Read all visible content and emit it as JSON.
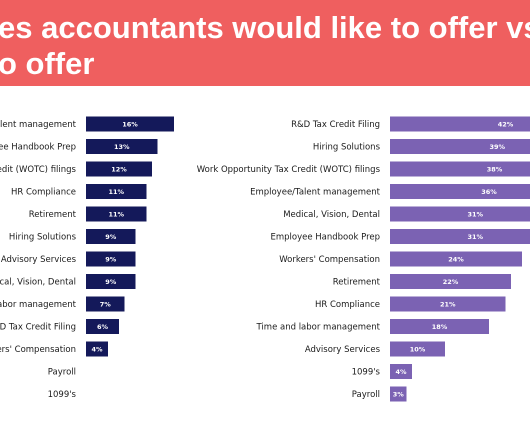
{
  "title": {
    "line1": "es accountants would like to offer vs. do no",
    "line2": "o offer"
  },
  "colors": {
    "banner": "#ef5f5f",
    "left_bars": "#14195a",
    "right_bars": "#7b62b3"
  },
  "chart_data": [
    {
      "type": "bar",
      "orientation": "horizontal",
      "title": "",
      "categories": [
        "alent management",
        "yee Handbook Prep",
        "credit (WOTC) filings",
        "HR Compliance",
        "Retirement",
        "Hiring Solutions",
        "Advisory Services",
        "dical, Vision, Dental",
        "labor management",
        "&D Tax Credit Filing",
        "kers' Compensation",
        "Payroll",
        "1099's"
      ],
      "values": [
        16,
        13,
        12,
        11,
        11,
        9,
        9,
        9,
        7,
        6,
        4,
        0,
        0
      ],
      "value_labels": [
        "16%",
        "13%",
        "12%",
        "11%",
        "11%",
        "9%",
        "9%",
        "9%",
        "7%",
        "6%",
        "4%",
        "",
        ""
      ],
      "unit": "%",
      "xlim": [
        0,
        45
      ],
      "grid": false,
      "color": "#14195a"
    },
    {
      "type": "bar",
      "orientation": "horizontal",
      "title": "",
      "categories": [
        "R&D Tax Credit Filing",
        "Hiring Solutions",
        "Work Opportunity Tax Credit (WOTC) filings",
        "Employee/Talent management",
        "Medical, Vision, Dental",
        "Employee Handbook Prep",
        "Workers' Compensation",
        "Retirement",
        "HR Compliance",
        "Time and labor management",
        "Advisory Services",
        "1099's",
        "Payroll"
      ],
      "values": [
        42,
        39,
        38,
        36,
        31,
        31,
        24,
        22,
        21,
        18,
        10,
        4,
        3
      ],
      "value_labels": [
        "42%",
        "39%",
        "38%",
        "36%",
        "31%",
        "31%",
        "24%",
        "22%",
        "21%",
        "18%",
        "10%",
        "4%",
        "3%"
      ],
      "unit": "%",
      "xlim": [
        0,
        45
      ],
      "grid": false,
      "color": "#7b62b3"
    }
  ]
}
